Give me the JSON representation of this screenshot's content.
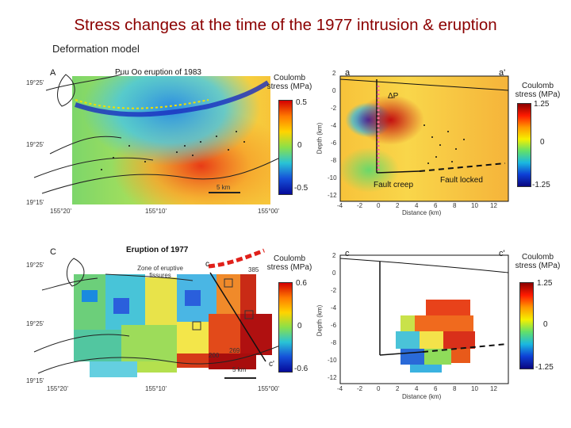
{
  "slide": {
    "title": "Stress changes at the time of the 1977 intrusion & eruption",
    "subtitle": "Deformation model"
  },
  "panel_A": {
    "letter": "A",
    "heading": "Puu Oo eruption of 1983",
    "lat_top": "19°25'",
    "lat_mid": "19°25'",
    "lat_bot": "19°15'",
    "lon_left": "155°20'",
    "lon_mid": "155°10'",
    "lon_right": "155°00'",
    "scale": "5 km",
    "colorbar": {
      "title": "Coulomb stress (MPa)",
      "max": "0.5",
      "mid": "0",
      "min": "-0.5"
    }
  },
  "panel_a": {
    "left_label": "a",
    "right_label": "a'",
    "delta_p": "ΔP",
    "fault_creep": "Fault creep",
    "fault_locked": "Fault locked",
    "ylabel": "Depth (km)",
    "xlabel": "Distance (km)",
    "yticks": [
      "2",
      "0",
      "-2",
      "-4",
      "-6",
      "-8",
      "-10",
      "-12"
    ],
    "xticks": [
      "-4",
      "-2",
      "0",
      "2",
      "4",
      "6",
      "8",
      "10",
      "12"
    ],
    "colorbar": {
      "title": "Coulomb stress (MPa)",
      "max": "1.25",
      "mid": "0",
      "min": "-1.25"
    }
  },
  "panel_C": {
    "letter": "C",
    "heading": "Eruption of 1977",
    "zone": "Zone of eruptive fissures",
    "c": "c",
    "c_prime": "c'",
    "site_385": "385",
    "site_200": "200",
    "site_269": "269",
    "lat_top": "19°25'",
    "lat_mid": "19°25'",
    "lat_bot": "19°15'",
    "lon_left": "155°20'",
    "lon_mid": "155°10'",
    "lon_right": "155°00'",
    "scale": "5 km",
    "colorbar": {
      "title": "Coulomb stress (MPa)",
      "max": "0.6",
      "mid": "0",
      "min": "-0.6"
    }
  },
  "panel_c": {
    "left_label": "c",
    "right_label": "c'",
    "ylabel": "Depth (km)",
    "xlabel": "Distance (km)",
    "yticks": [
      "2",
      "0",
      "-2",
      "-4",
      "-6",
      "-8",
      "-10",
      "-12"
    ],
    "xticks": [
      "-4",
      "-2",
      "0",
      "2",
      "4",
      "6",
      "8",
      "10",
      "12"
    ],
    "colorbar": {
      "title": "Coulomb stress (MPa)",
      "max": "1.25",
      "mid": "0",
      "min": "-1.25"
    }
  }
}
